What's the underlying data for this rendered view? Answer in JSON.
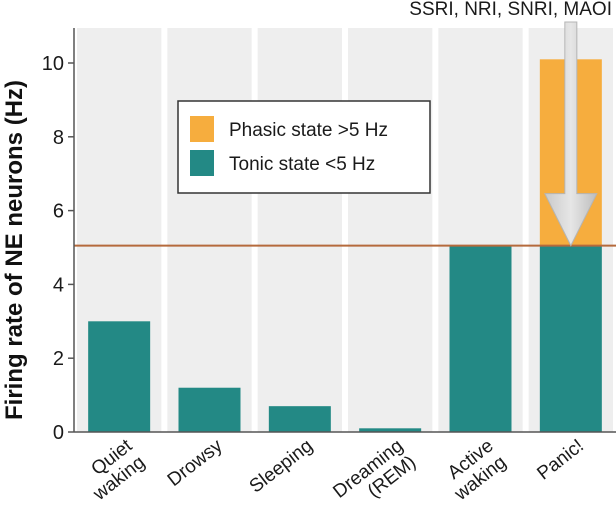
{
  "chart_data": {
    "type": "bar",
    "stacked": true,
    "ylabel": "Firing rate of NE neurons (Hz)",
    "xlabel": "",
    "ylim": [
      0,
      10.5
    ],
    "yticks": [
      0,
      2,
      4,
      6,
      8,
      10
    ],
    "ytick_labels": [
      "0",
      "2",
      "4",
      "6",
      "8",
      "10"
    ],
    "categories": [
      [
        "Quiet",
        "waking"
      ],
      [
        "Drowsy"
      ],
      [
        "Sleeping"
      ],
      [
        "Dreaming",
        "(REM)"
      ],
      [
        "Active",
        "waking"
      ],
      [
        "Panic!"
      ]
    ],
    "series": [
      {
        "name": "Tonic state <5 Hz",
        "color": "#238985",
        "values": [
          3.0,
          1.2,
          0.7,
          0.1,
          5.05,
          5.05
        ]
      },
      {
        "name": "Phasic state >5 Hz",
        "color": "#F6AD3E",
        "values": [
          0,
          0,
          0,
          0,
          0,
          5.05
        ]
      }
    ],
    "legend_position": "top-left",
    "threshold_line": {
      "value": 5.05,
      "color": "#B56A3C"
    },
    "annotation": {
      "text": "SSRI, NRI, SNRI, MAOI",
      "arrow_from": 11.5,
      "arrow_to": 5.05,
      "category_index": 5
    },
    "grid": false,
    "column_background": "#EEEEEE"
  }
}
